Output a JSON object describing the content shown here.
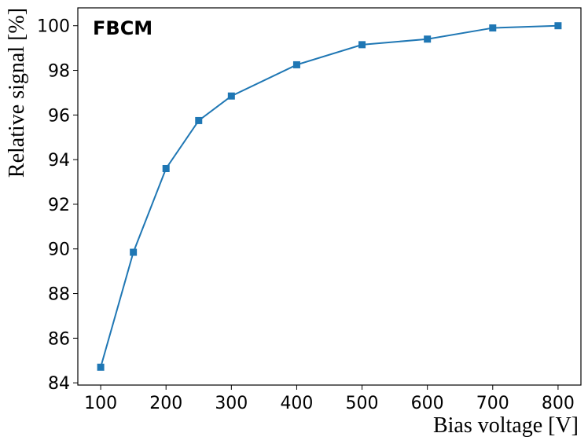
{
  "chart_data": {
    "type": "line",
    "title": "",
    "annotation": "FBCM",
    "xlabel": "Bias voltage [V]",
    "ylabel": "Relative signal [%]",
    "xlim": [
      65,
      835
    ],
    "ylim": [
      83.9,
      100.8
    ],
    "xticks": [
      100,
      200,
      300,
      400,
      500,
      600,
      700,
      800
    ],
    "yticks": [
      84,
      86,
      88,
      90,
      92,
      94,
      96,
      98,
      100
    ],
    "grid": false,
    "marker": "square",
    "color": "#1f77b4",
    "series": [
      {
        "x": [
          100,
          150,
          200,
          250,
          300,
          400,
          500,
          600,
          700,
          800
        ],
        "y": [
          84.7,
          89.85,
          93.6,
          95.75,
          96.85,
          98.25,
          99.15,
          99.4,
          99.9,
          100.0
        ]
      }
    ]
  }
}
